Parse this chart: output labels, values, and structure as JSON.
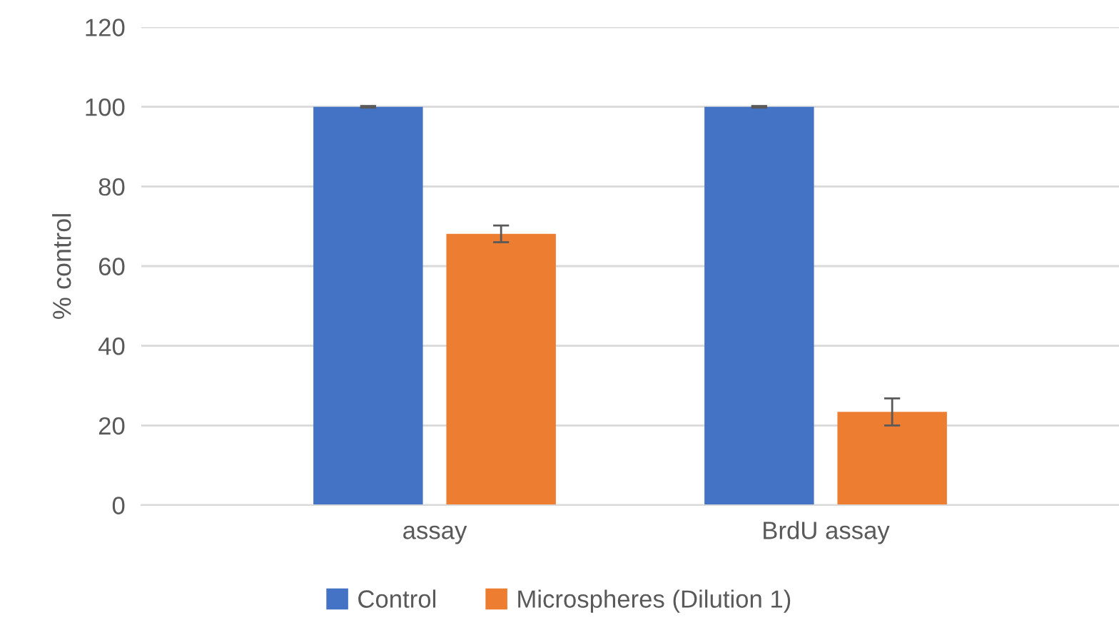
{
  "chart_data": {
    "type": "bar",
    "ylabel": "% control",
    "categories": [
      "assay",
      "BrdU assay"
    ],
    "series": [
      {
        "name": "Control",
        "color": "#4472c4",
        "values": [
          100,
          100
        ],
        "errors": [
          0.2,
          0.2
        ]
      },
      {
        "name": "Microspheres (Dilution 1)",
        "color": "#ed7d31",
        "values": [
          68.1,
          23.4
        ],
        "errors": [
          2.1,
          3.4
        ]
      }
    ],
    "ylim": [
      0,
      120
    ],
    "yticks": [
      0,
      20,
      40,
      60,
      80,
      100,
      120
    ],
    "grid": "y",
    "legend": "bottom"
  }
}
